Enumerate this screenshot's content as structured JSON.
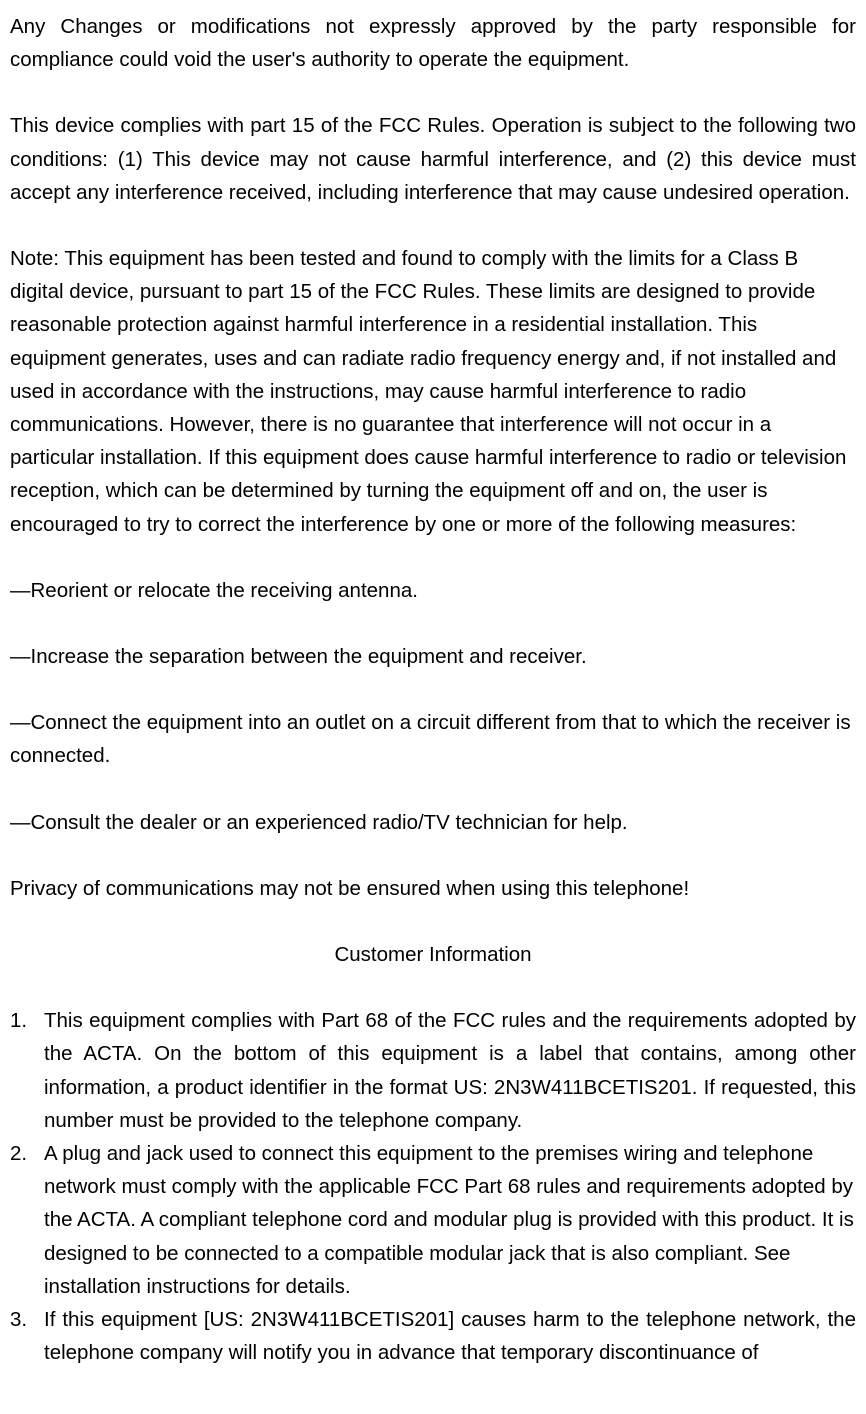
{
  "document": {
    "font_family": "Arial, Helvetica, sans-serif",
    "font_size_pt": 15,
    "text_color": "#000000",
    "background_color": "#ffffff",
    "sections": {
      "para1": "Any Changes or modifications not expressly approved by the party responsible for compliance could void the user's   authority to operate the equipment.",
      "para2": "This device complies with part 15 of the FCC Rules. Operation is subject to the following two conditions: (1) This device may not cause harmful interference, and (2) this device must accept any interference received, including   interference that may cause undesired operation.",
      "para3": "Note: This equipment has been tested and found to comply with the limits for a Class B digital device, pursuant to   part 15 of the FCC Rules. These limits are designed to provide reasonable protection against harmful interference in   a residential installation. This equipment generates, uses and can radiate radio frequency energy and, if not installed   and used in accordance with the instructions, may cause harmful interference to radio communications. However,   there is no guarantee that interference will not occur in a particular installation. If this equipment does cause harmful   interference to radio or television reception, which can be determined by turning the equipment off and on, the user is   encouraged to try to correct the interference by one or more of the following measures:",
      "measure1": "—Reorient or relocate the receiving antenna.",
      "measure2": "—Increase the separation between the equipment and receiver.",
      "measure3": "—Connect the equipment into an outlet on a circuit different from that to which the receiver is connected.",
      "measure4": "—Consult the dealer or an experienced radio/TV technician for help.",
      "privacy": "Privacy of communications may not be ensured when using this telephone!",
      "heading": "Customer Information",
      "list": [
        {
          "num": "1.",
          "text": "This equipment complies with Part 68 of the FCC rules and the requirements adopted by the ACTA. On the bottom of this equipment is a label that contains, among other information, a product identifier in the format US: 2N3W411BCETIS201. If requested, this number must be provided to the telephone company.",
          "justify": true
        },
        {
          "num": "2.",
          "text": "A plug and jack used to connect this equipment to the premises wiring and telephone network must comply with the applicable FCC Part 68 rules and requirements adopted by the ACTA. A compliant telephone cord and modular plug is provided with this product. It is designed to be connected to a compatible modular jack that is also compliant. See installation instructions for details.",
          "justify": false
        },
        {
          "num": "3.",
          "text": "If this equipment [US: 2N3W411BCETIS201] causes harm to the telephone network, the telephone company will notify you in advance that temporary discontinuance of",
          "justify": true
        }
      ]
    }
  }
}
